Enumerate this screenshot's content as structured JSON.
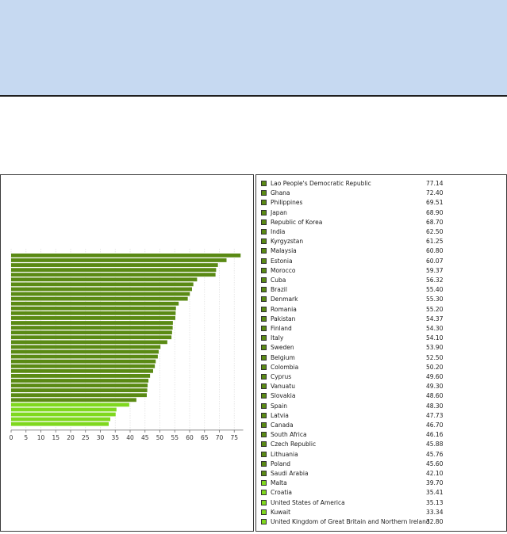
{
  "colors": {
    "bar_dark": "#5a8a14",
    "bar_light": "#7fd81e",
    "banner": "#c6d9f1"
  },
  "chart_data": {
    "type": "bar",
    "orientation": "horizontal",
    "xlim": [
      0,
      78
    ],
    "xticks": [
      "0",
      "5",
      "10",
      "15",
      "20",
      "25",
      "30",
      "35",
      "40",
      "45",
      "50",
      "55",
      "60",
      "65",
      "70",
      "75"
    ],
    "grid": true,
    "legend_position": "right",
    "categories": [
      "Lao People's Democratic Republic",
      "Ghana",
      "Philippines",
      "Japan",
      "Republic of Korea",
      "India",
      "Kyrgyzstan",
      "Malaysia",
      "Estonia",
      "Morocco",
      "Cuba",
      "Brazil",
      "Denmark",
      "Romania",
      "Pakistan",
      "Finland",
      "Italy",
      "Sweden",
      "Belgium",
      "Colombia",
      "Cyprus",
      "Vanuatu",
      "Slovakia",
      "Spain",
      "Latvia",
      "Canada",
      "South Africa",
      "Czech Republic",
      "Lithuania",
      "Poland",
      "Saudi Arabia",
      "Malta",
      "Croatia",
      "United States of America",
      "Kuwait",
      "United Kingdom of Great Britain and Northern Ireland"
    ],
    "values": [
      77.14,
      72.4,
      69.51,
      68.9,
      68.7,
      62.5,
      61.25,
      60.8,
      60.07,
      59.37,
      56.32,
      55.4,
      55.3,
      55.2,
      54.37,
      54.3,
      54.1,
      53.9,
      52.5,
      50.2,
      49.6,
      49.3,
      48.6,
      48.3,
      47.73,
      46.7,
      46.16,
      45.88,
      45.76,
      45.6,
      42.1,
      39.7,
      35.41,
      35.13,
      33.34,
      32.8
    ],
    "value_labels": [
      "77.14",
      "72.40",
      "69.51",
      "68.90",
      "68.70",
      "62.50",
      "61.25",
      "60.80",
      "60.07",
      "59.37",
      "56.32",
      "55.40",
      "55.30",
      "55.20",
      "54.37",
      "54.30",
      "54.10",
      "53.90",
      "52.50",
      "50.20",
      "49.60",
      "49.30",
      "48.60",
      "48.30",
      "47.73",
      "46.70",
      "46.16",
      "45.88",
      "45.76",
      "45.60",
      "42.10",
      "39.70",
      "35.41",
      "35.13",
      "33.34",
      "32.80"
    ],
    "light_from_index": 31
  }
}
